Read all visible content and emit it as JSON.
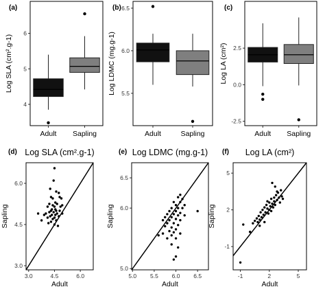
{
  "chart_data": [
    {
      "panel": "(a)",
      "type": "box",
      "ylabel": "Log SLA (cm².g-1)",
      "ylim": [
        3.4,
        6.9
      ],
      "yticks": [
        "4",
        "5",
        "6"
      ],
      "categories": [
        "Adult",
        "Sapling"
      ],
      "boxes": [
        {
          "category": "Adult",
          "min": 3.85,
          "q1": 4.22,
          "median": 4.42,
          "q3": 4.72,
          "max": 5.4,
          "outliers": [
            3.48
          ],
          "color": "#111111"
        },
        {
          "category": "Sapling",
          "min": 4.42,
          "q1": 4.9,
          "median": 5.07,
          "q3": 5.31,
          "max": 5.92,
          "outliers": [
            6.55
          ],
          "color": "#7f7f7f"
        }
      ]
    },
    {
      "panel": "(b)",
      "type": "box",
      "ylabel": "Log LDMC (mg.g-1)",
      "ylim": [
        5.12,
        6.58
      ],
      "yticks": [
        "5.5",
        "6.0",
        "6.5"
      ],
      "categories": [
        "Adult",
        "Sapling"
      ],
      "boxes": [
        {
          "category": "Adult",
          "min": 5.6,
          "q1": 5.87,
          "median": 6.01,
          "q3": 6.09,
          "max": 6.2,
          "outliers": [
            6.52
          ],
          "color": "#111111"
        },
        {
          "category": "Sapling",
          "min": 5.58,
          "q1": 5.72,
          "median": 5.88,
          "q3": 6.0,
          "max": 6.2,
          "outliers": [
            5.17
          ],
          "color": "#7f7f7f"
        }
      ]
    },
    {
      "panel": "(c)",
      "type": "box",
      "ylabel": "Log LA (cm²)",
      "ylim": [
        -2.8,
        5.7
      ],
      "yticks": [
        "-2.5",
        "0.0",
        "2.5"
      ],
      "categories": [
        "Adult",
        "Sapling"
      ],
      "boxes": [
        {
          "category": "Adult",
          "min": -0.1,
          "q1": 1.55,
          "median": 2.05,
          "q3": 2.55,
          "max": 4.2,
          "outliers": [
            -0.65,
            -1.0
          ],
          "color": "#111111"
        },
        {
          "category": "Sapling",
          "min": -0.05,
          "q1": 1.45,
          "median": 2.05,
          "q3": 2.75,
          "max": 4.6,
          "outliers": [
            -2.4
          ],
          "color": "#7f7f7f"
        }
      ]
    },
    {
      "panel": "(d)",
      "type": "scatter",
      "title": "Log SLA (cm².g-1)",
      "xlabel": "Adult",
      "ylabel": "Sapling",
      "xlim": [
        2.85,
        6.75
      ],
      "ylim": [
        2.85,
        6.75
      ],
      "xticks": [
        "3.0",
        "4.5",
        "6.0"
      ],
      "yticks": [
        "3.0",
        "4.5",
        "6.0"
      ],
      "reference_line": "1:1",
      "points": [
        [
          4.5,
          6.55
        ],
        [
          4.45,
          6.1
        ],
        [
          4.25,
          5.8
        ],
        [
          4.6,
          5.7
        ],
        [
          4.75,
          5.65
        ],
        [
          4.8,
          5.5
        ],
        [
          4.3,
          5.5
        ],
        [
          4.9,
          5.45
        ],
        [
          4.4,
          5.45
        ],
        [
          4.55,
          5.3
        ],
        [
          4.2,
          5.25
        ],
        [
          4.4,
          5.2
        ],
        [
          4.65,
          5.25
        ],
        [
          4.95,
          5.2
        ],
        [
          4.1,
          5.15
        ],
        [
          4.5,
          5.15
        ],
        [
          4.85,
          5.15
        ],
        [
          4.35,
          5.05
        ],
        [
          4.55,
          5.05
        ],
        [
          4.3,
          5.0
        ],
        [
          4.6,
          5.0
        ],
        [
          4.8,
          5.0
        ],
        [
          4.2,
          4.95
        ],
        [
          4.45,
          4.95
        ],
        [
          4.0,
          4.9
        ],
        [
          4.65,
          4.9
        ],
        [
          4.95,
          4.9
        ],
        [
          3.9,
          4.85
        ],
        [
          4.35,
          4.85
        ],
        [
          4.55,
          4.85
        ],
        [
          3.55,
          4.9
        ],
        [
          4.25,
          4.8
        ],
        [
          4.75,
          4.8
        ],
        [
          4.1,
          4.75
        ],
        [
          4.5,
          4.75
        ],
        [
          4.4,
          4.7
        ],
        [
          4.6,
          4.65
        ],
        [
          3.75,
          4.65
        ],
        [
          4.3,
          4.6
        ],
        [
          4.15,
          4.55
        ],
        [
          4.5,
          4.5
        ],
        [
          4.7,
          4.45
        ]
      ]
    },
    {
      "panel": "(e)",
      "type": "scatter",
      "title": "Log LDMC (mg.g-1)",
      "xlabel": "Adult",
      "ylabel": "Sapling",
      "xlim": [
        4.98,
        6.75
      ],
      "ylim": [
        4.98,
        6.75
      ],
      "xticks": [
        "5.0",
        "5.5",
        "6.0",
        "6.5"
      ],
      "yticks": [
        "5.0",
        "6.0",
        "6.5"
      ],
      "reference_line": "1:1",
      "points": [
        [
          6.1,
          6.22
        ],
        [
          6.05,
          6.18
        ],
        [
          6.15,
          6.15
        ],
        [
          5.95,
          6.1
        ],
        [
          6.1,
          6.1
        ],
        [
          6.0,
          6.05
        ],
        [
          6.2,
          6.05
        ],
        [
          5.9,
          6.0
        ],
        [
          6.05,
          6.0
        ],
        [
          6.15,
          6.0
        ],
        [
          5.85,
          5.95
        ],
        [
          6.0,
          5.95
        ],
        [
          6.1,
          5.92
        ],
        [
          5.8,
          5.9
        ],
        [
          5.95,
          5.9
        ],
        [
          6.05,
          5.88
        ],
        [
          6.2,
          5.88
        ],
        [
          6.5,
          5.95
        ],
        [
          5.75,
          5.85
        ],
        [
          5.9,
          5.85
        ],
        [
          6.0,
          5.82
        ],
        [
          5.7,
          5.8
        ],
        [
          5.85,
          5.8
        ],
        [
          6.1,
          5.8
        ],
        [
          5.8,
          5.75
        ],
        [
          5.95,
          5.75
        ],
        [
          6.05,
          5.72
        ],
        [
          5.75,
          5.7
        ],
        [
          5.9,
          5.68
        ],
        [
          6.0,
          5.65
        ],
        [
          5.85,
          5.62
        ],
        [
          5.95,
          5.6
        ],
        [
          5.7,
          5.58
        ],
        [
          6.1,
          5.58
        ],
        [
          5.6,
          5.55
        ],
        [
          5.9,
          5.55
        ],
        [
          5.8,
          5.5
        ],
        [
          6.0,
          5.5
        ],
        [
          5.9,
          5.4
        ],
        [
          6.05,
          5.35
        ],
        [
          6.0,
          5.2
        ],
        [
          5.95,
          5.15
        ]
      ]
    },
    {
      "panel": "(f)",
      "type": "scatter",
      "title": "Log LA (cm²)",
      "xlabel": "Adult",
      "ylabel": "Sapling",
      "xlim": [
        -1.75,
        5.85
      ],
      "ylim": [
        -2.9,
        5.85
      ],
      "xticks": [
        "-1",
        "2",
        "5"
      ],
      "yticks": [
        "-1",
        "2",
        "5"
      ],
      "reference_line": "1:1",
      "points": [
        [
          -1.0,
          -2.3
        ],
        [
          -0.7,
          0.8
        ],
        [
          0.0,
          0.2
        ],
        [
          0.3,
          0.9
        ],
        [
          0.5,
          1.1
        ],
        [
          0.7,
          1.3
        ],
        [
          0.8,
          1.0
        ],
        [
          0.9,
          1.5
        ],
        [
          1.0,
          1.2
        ],
        [
          1.1,
          1.8
        ],
        [
          1.2,
          1.4
        ],
        [
          1.3,
          2.0
        ],
        [
          1.4,
          1.6
        ],
        [
          1.5,
          2.2
        ],
        [
          1.5,
          1.0
        ],
        [
          1.6,
          1.8
        ],
        [
          1.7,
          2.4
        ],
        [
          1.8,
          2.1
        ],
        [
          1.9,
          1.7
        ],
        [
          2.0,
          2.6
        ],
        [
          2.0,
          2.0
        ],
        [
          2.1,
          2.3
        ],
        [
          2.2,
          2.9
        ],
        [
          2.2,
          1.9
        ],
        [
          2.3,
          2.5
        ],
        [
          2.4,
          2.2
        ],
        [
          2.5,
          3.0
        ],
        [
          2.5,
          2.7
        ],
        [
          2.6,
          2.4
        ],
        [
          2.7,
          3.2
        ],
        [
          2.8,
          2.8
        ],
        [
          2.9,
          3.4
        ],
        [
          3.0,
          3.0
        ],
        [
          3.1,
          2.6
        ],
        [
          3.2,
          3.6
        ],
        [
          3.3,
          3.1
        ],
        [
          2.6,
          3.9
        ],
        [
          2.3,
          4.2
        ],
        [
          3.4,
          2.9
        ],
        [
          1.0,
          0.7
        ],
        [
          2.8,
          3.5
        ],
        [
          1.8,
          2.7
        ]
      ]
    }
  ],
  "colors": {
    "adult_box": "#111111",
    "sapling_box": "#7f7f7f",
    "axis": "#000000",
    "point": "#000000"
  }
}
